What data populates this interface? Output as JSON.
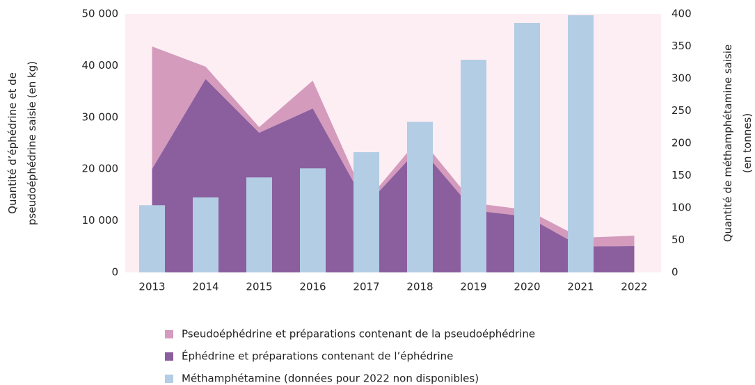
{
  "chart_data": {
    "type": "combo",
    "ylabel": [
      "Quantité d’éphédrine et de",
      "pseudoéphédrine saisie (en kg)"
    ],
    "y2label": [
      "Quantité de méthamphétamine saisie",
      "(en tonnes)"
    ],
    "categories": [
      "2013",
      "2014",
      "2015",
      "2016",
      "2017",
      "2018",
      "2019",
      "2020",
      "2021",
      "2022"
    ],
    "series": [
      {
        "name": "Éphédrine et préparations contenant de l’éphédrine",
        "type": "area",
        "stack": true,
        "color": "#8b5e9e",
        "values": [
          20000,
          37400,
          27000,
          31700,
          13000,
          24200,
          12000,
          10800,
          5000,
          5100
        ]
      },
      {
        "name": "Pseudoéphédrine et préparations contenant de la pseudoéphédrine",
        "type": "area",
        "stack": true,
        "color": "#d49bbd",
        "values": [
          23700,
          2400,
          1100,
          5400,
          700,
          1900,
          1400,
          1300,
          1700,
          2000
        ]
      },
      {
        "name": "Méthamphétamine (données pour 2022 non disponibles)",
        "type": "bar",
        "axis": "y2",
        "color": "#b3cde4",
        "values": [
          104,
          116,
          147,
          161,
          186,
          233,
          329,
          386,
          398,
          null
        ]
      }
    ],
    "legend_order": [
      1,
      0,
      2
    ],
    "ylim": [
      0,
      50000
    ],
    "yticks": [
      0,
      {
        "value": 10000,
        "label": "10 000"
      },
      {
        "value": 20000,
        "label": "20 000"
      },
      {
        "value": 30000,
        "label": "30 000"
      },
      {
        "value": 40000,
        "label": "40 000"
      },
      {
        "value": 50000,
        "label": "50 000"
      }
    ],
    "y2lim": [
      0,
      400
    ],
    "y2ticks": [
      0,
      50,
      100,
      150,
      200,
      250,
      300,
      350,
      400
    ],
    "plot_background": "#fdeef4"
  }
}
